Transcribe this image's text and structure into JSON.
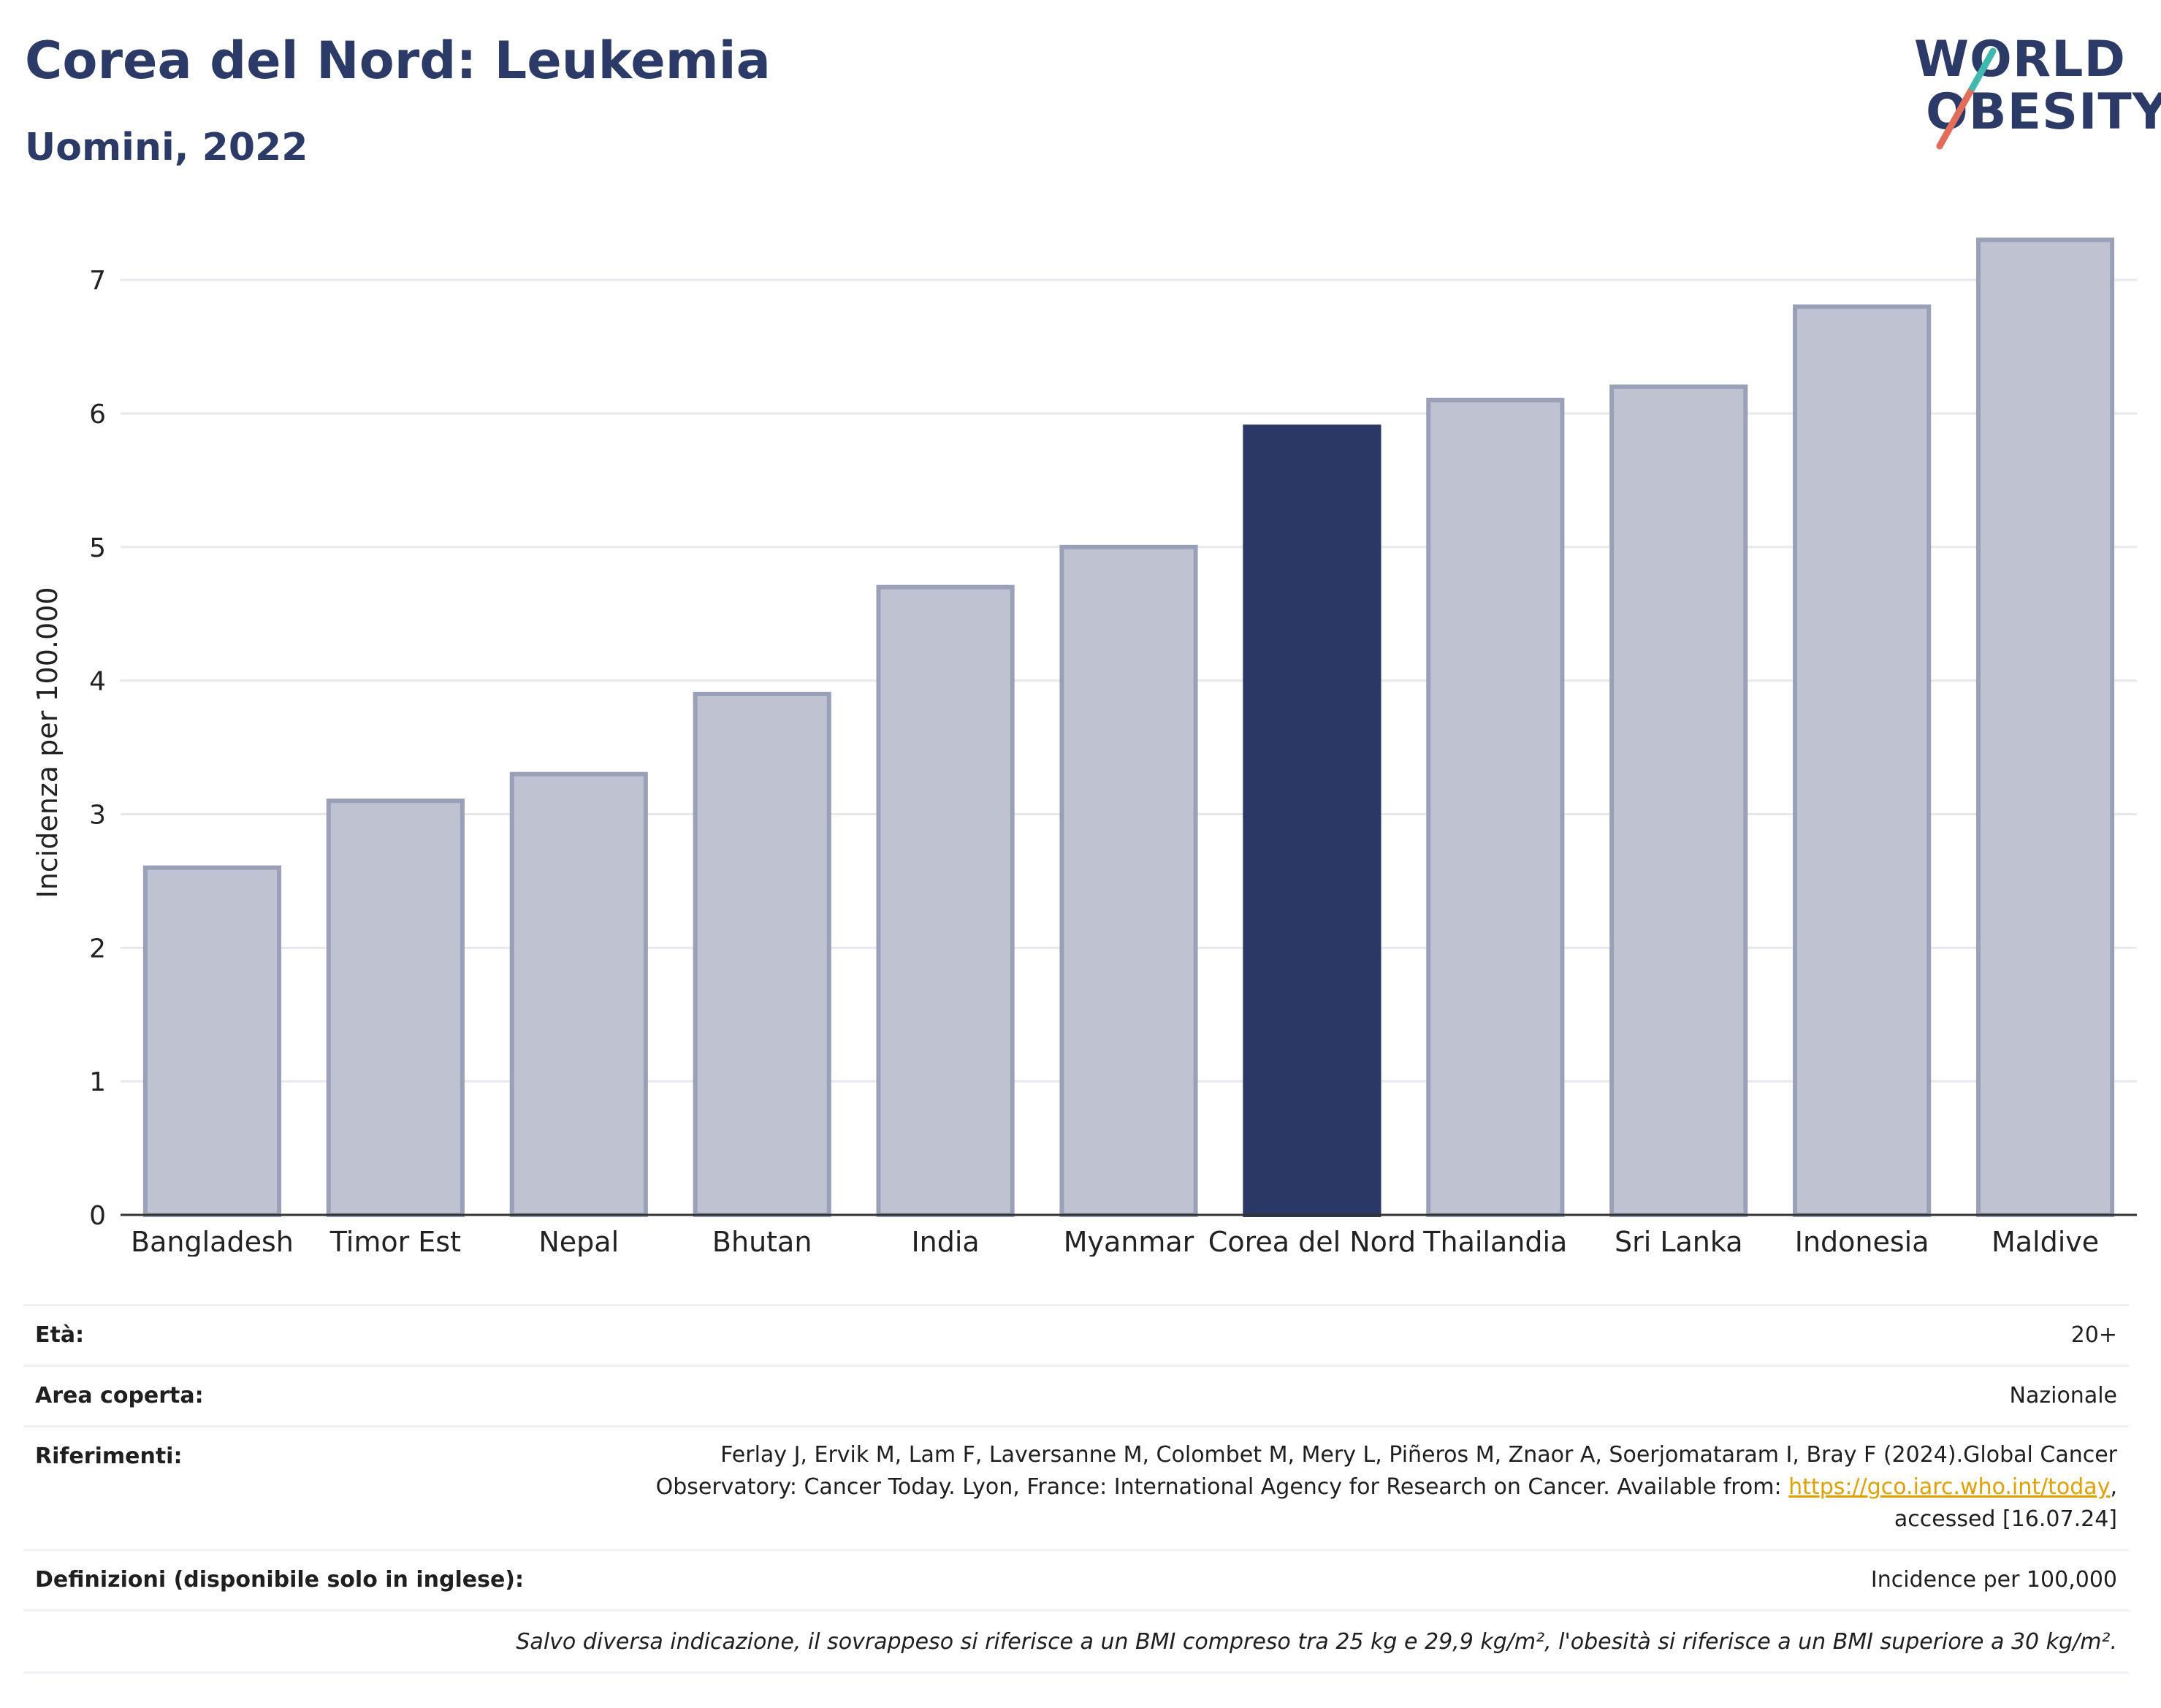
{
  "header": {
    "title": "Corea del Nord: Leukemia",
    "subtitle": "Uomini, 2022"
  },
  "logo": {
    "line1": "WORLD",
    "line2": "OBESITY",
    "colors": {
      "navy": "#2b3a67",
      "teal": "#3fb8b0",
      "coral": "#e26d5a"
    }
  },
  "chart_data": {
    "type": "bar",
    "ylabel": "Incidenza per 100.000",
    "xlabel": "",
    "ylim": [
      0,
      7.4
    ],
    "yticks": [
      0,
      1,
      2,
      3,
      4,
      5,
      6,
      7
    ],
    "grid": true,
    "categories": [
      "Bangladesh",
      "Timor Est",
      "Nepal",
      "Bhutan",
      "India",
      "Myanmar",
      "Corea del Nord",
      "Thailandia",
      "Sri Lanka",
      "Indonesia",
      "Maldive"
    ],
    "values": [
      2.6,
      3.1,
      3.3,
      3.9,
      4.7,
      5.0,
      5.9,
      6.1,
      6.2,
      6.8,
      7.3
    ],
    "highlight": "Corea del Nord",
    "colors": {
      "bar": "#bfc3d1",
      "bar_border": "#9aa0b8",
      "highlight": "#2b3764"
    }
  },
  "info": {
    "age_label": "Età:",
    "age_value": "20+",
    "area_label": "Area coperta:",
    "area_value": "Nazionale",
    "ref_label": "Riferimenti:",
    "ref_line1": "Ferlay J, Ervik M, Lam F, Laversanne M, Colombet M, Mery L, Piñeros M, Znaor A, Soerjomataram I, Bray F (2024).Global Cancer",
    "ref_line2_pre": "Observatory: Cancer Today. Lyon, France: International Agency for Research on Cancer. Available from: ",
    "ref_link": "https://gco.iarc.who.int/today",
    "ref_line2_post": ",",
    "ref_line3": "accessed [16.07.24]",
    "def_label": "Definizioni (disponibile solo in inglese):",
    "def_value": "Incidence per 100,000",
    "note": "Salvo diversa indicazione, il sovrappeso si riferisce a un BMI compreso tra 25 kg e 29,9 kg/m², l'obesità si riferisce a un BMI superiore a 30 kg/m²."
  }
}
